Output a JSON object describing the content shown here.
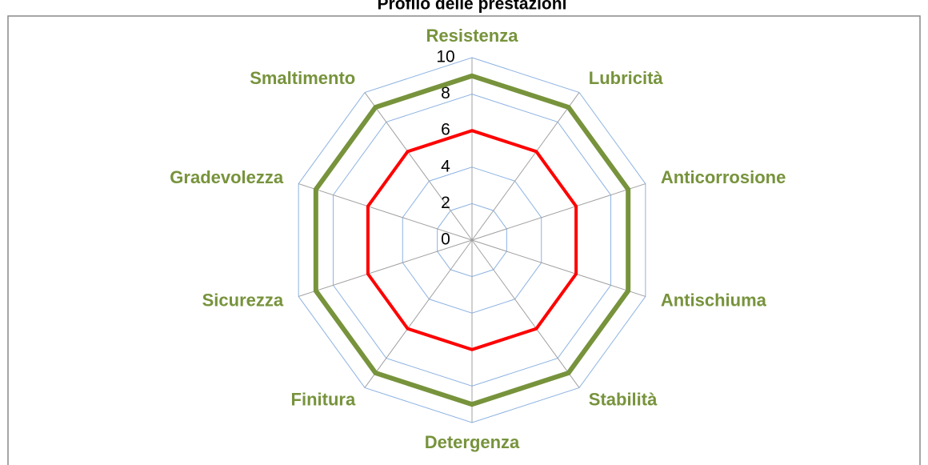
{
  "chart_data": {
    "type": "radar",
    "title": "Profilo delle prestazioni",
    "categories": [
      "Resistenza",
      "Lubricità",
      "Anticorrosione",
      "Antischiuma",
      "Stabilità",
      "Detergenza",
      "Finitura",
      "Sicurezza",
      "Gradevolezza",
      "Smaltimento"
    ],
    "series": [
      {
        "color": "#77933c",
        "values": [
          9,
          9,
          9,
          9,
          9,
          9,
          9,
          9,
          9,
          9
        ]
      },
      {
        "color": "#ff0000",
        "values": [
          6,
          6,
          6,
          6,
          6,
          6,
          6,
          6,
          6,
          6
        ]
      }
    ],
    "ylim": [
      0,
      10
    ],
    "yticks": [
      0,
      2,
      4,
      6,
      8,
      10
    ],
    "grid": true
  }
}
